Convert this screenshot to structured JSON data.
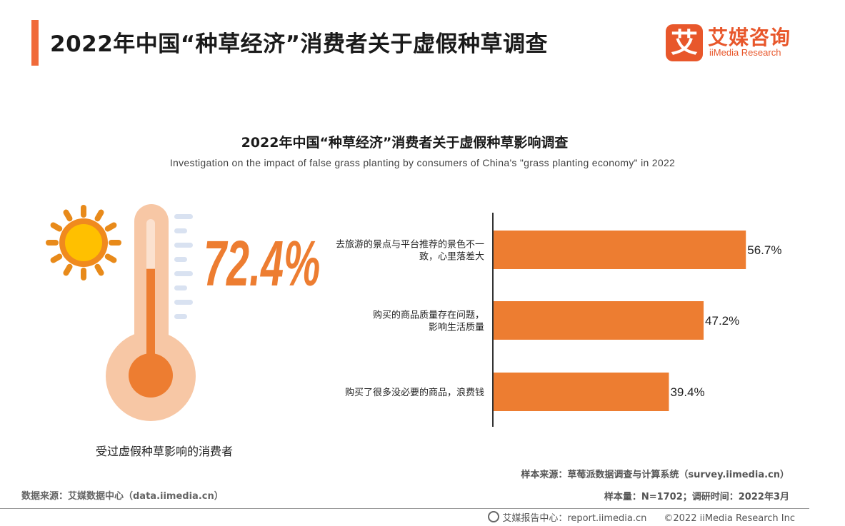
{
  "header": {
    "title": "2022年中国“种草经济”消费者关于虚假种草调查",
    "accent_color": "#f06a3a"
  },
  "logo": {
    "mark": "艾",
    "name_cn": "艾媒咨询",
    "name_en": "iiMedia Research",
    "color": "#e8572b"
  },
  "chart_title": "2022年中国“种草经济”消费者关于虚假种草影响调查",
  "chart_subtitle": "Investigation on the impact of false grass planting by consumers of China's \"grass planting economy\" in 2022",
  "stat": {
    "value": "72.4%",
    "fraction": 0.724,
    "caption": "受过虚假种草影响的消费者",
    "icons": [
      "sun-icon",
      "thermometer-icon"
    ]
  },
  "chart_data": {
    "type": "bar",
    "orientation": "horizontal",
    "categories": [
      [
        "去旅游的景点与平台推荐的景色不一",
        "致，心里落差大"
      ],
      [
        "购买的商品质量存在问题，",
        "影响生活质量"
      ],
      [
        "购买了很多没必要的商品，浪费钱"
      ]
    ],
    "values": [
      56.7,
      47.2,
      39.4
    ],
    "value_labels": [
      "56.7%",
      "47.2%",
      "39.4%"
    ],
    "unit": "%",
    "xlim": [
      0,
      60
    ],
    "bar_color": "#ed7d31",
    "grid": false
  },
  "source": {
    "sample_source": "样本来源：草莓派数据调查与计算系统（survey.iimedia.cn）",
    "sample_info": "样本量：N=1702；调研时间：2022年3月",
    "data_source": "数据来源：艾媒数据中心（data.iimedia.cn）"
  },
  "footer": {
    "report_center": "艾媒报告中心：report.iimedia.cn",
    "copyright": "©2022  iiMedia Research  Inc"
  }
}
